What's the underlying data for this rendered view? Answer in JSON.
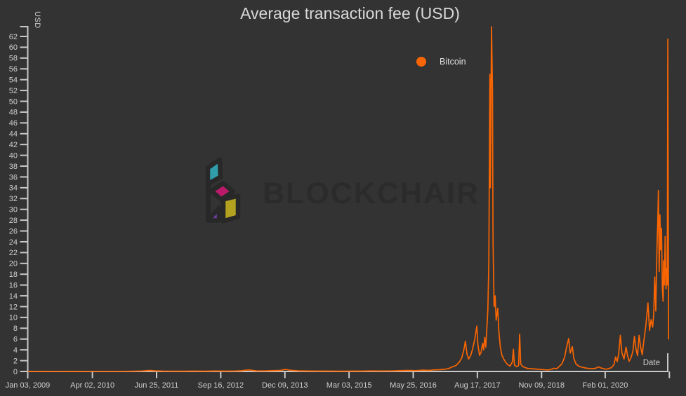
{
  "watermark": {
    "text": "BLOCKCHAIR"
  },
  "colors": {
    "background": "#333333",
    "series_orange": "#f96502",
    "axis_line": "#c9c9c9",
    "tick_label": "#cfcfcf",
    "title_text": "#d9d9d9",
    "watermark_text": "#2b2b2b",
    "logo_outline": "#282828",
    "logo_teal": "#2f9dab",
    "logo_magenta": "#bb1a6b",
    "logo_yellow": "#b2a21f",
    "logo_purple": "#6e3fa3"
  },
  "chart_data": {
    "type": "line",
    "title": "Average transaction fee (USD)",
    "xlabel": "Date",
    "ylabel": "USD",
    "legend_position": "top-center",
    "grid": false,
    "ylim": [
      0,
      64
    ],
    "y_tick_labels": [
      0,
      2,
      4,
      6,
      8,
      10,
      12,
      14,
      16,
      18,
      20,
      22,
      24,
      26,
      28,
      30,
      32,
      34,
      36,
      38,
      40,
      42,
      44,
      46,
      48,
      50,
      52,
      54,
      56,
      58,
      60,
      62
    ],
    "x_range_years": [
      2009.01,
      2021.36
    ],
    "x_ticks": [
      {
        "label": "Jan 03, 2009",
        "year": 2009.01
      },
      {
        "label": "Apr 02, 2010",
        "year": 2010.25
      },
      {
        "label": "Jun 25, 2011",
        "year": 2011.48
      },
      {
        "label": "Sep 16, 2012",
        "year": 2012.71
      },
      {
        "label": "Dec 09, 2013",
        "year": 2013.94
      },
      {
        "label": "Mar 03, 2015",
        "year": 2015.17
      },
      {
        "label": "May 25, 2016",
        "year": 2016.4
      },
      {
        "label": "Aug 17, 2017",
        "year": 2017.63
      },
      {
        "label": "Nov 09, 2018",
        "year": 2018.86
      },
      {
        "label": "Feb 01, 2020",
        "year": 2020.08
      },
      {
        "label": "",
        "year": 2021.31
      }
    ],
    "series": [
      {
        "name": "Bitcoin",
        "color": "#f96502",
        "points": [
          [
            2009.02,
            0.02
          ],
          [
            2009.3,
            0.01
          ],
          [
            2009.6,
            0.02
          ],
          [
            2009.9,
            0.01
          ],
          [
            2010.2,
            0.02
          ],
          [
            2010.5,
            0.03
          ],
          [
            2010.8,
            0.02
          ],
          [
            2011.0,
            0.04
          ],
          [
            2011.2,
            0.09
          ],
          [
            2011.35,
            0.2
          ],
          [
            2011.45,
            0.12
          ],
          [
            2011.6,
            0.06
          ],
          [
            2011.8,
            0.05
          ],
          [
            2012.0,
            0.05
          ],
          [
            2012.2,
            0.07
          ],
          [
            2012.4,
            0.05
          ],
          [
            2012.6,
            0.08
          ],
          [
            2012.8,
            0.06
          ],
          [
            2013.0,
            0.09
          ],
          [
            2013.1,
            0.13
          ],
          [
            2013.25,
            0.3
          ],
          [
            2013.3,
            0.22
          ],
          [
            2013.4,
            0.12
          ],
          [
            2013.55,
            0.1
          ],
          [
            2013.7,
            0.14
          ],
          [
            2013.85,
            0.2
          ],
          [
            2013.95,
            0.38
          ],
          [
            2014.05,
            0.22
          ],
          [
            2014.2,
            0.12
          ],
          [
            2014.4,
            0.08
          ],
          [
            2014.6,
            0.07
          ],
          [
            2014.8,
            0.06
          ],
          [
            2015.0,
            0.05
          ],
          [
            2015.2,
            0.06
          ],
          [
            2015.4,
            0.07
          ],
          [
            2015.6,
            0.1
          ],
          [
            2015.8,
            0.09
          ],
          [
            2016.0,
            0.11
          ],
          [
            2016.15,
            0.14
          ],
          [
            2016.3,
            0.19
          ],
          [
            2016.45,
            0.15
          ],
          [
            2016.6,
            0.24
          ],
          [
            2016.7,
            0.2
          ],
          [
            2016.8,
            0.3
          ],
          [
            2016.9,
            0.33
          ],
          [
            2017.0,
            0.4
          ],
          [
            2017.08,
            0.55
          ],
          [
            2017.15,
            0.85
          ],
          [
            2017.22,
            1.1
          ],
          [
            2017.28,
            1.7
          ],
          [
            2017.33,
            2.5
          ],
          [
            2017.37,
            4.0
          ],
          [
            2017.4,
            5.6
          ],
          [
            2017.43,
            3.3
          ],
          [
            2017.46,
            2.3
          ],
          [
            2017.5,
            2.9
          ],
          [
            2017.54,
            4.2
          ],
          [
            2017.58,
            6.0
          ],
          [
            2017.62,
            8.4
          ],
          [
            2017.64,
            5.0
          ],
          [
            2017.67,
            3.0
          ],
          [
            2017.7,
            3.5
          ],
          [
            2017.73,
            5.2
          ],
          [
            2017.75,
            4.0
          ],
          [
            2017.77,
            6.3
          ],
          [
            2017.79,
            4.5
          ],
          [
            2017.81,
            7.8
          ],
          [
            2017.83,
            11.5
          ],
          [
            2017.85,
            20.0
          ],
          [
            2017.87,
            55.0
          ],
          [
            2017.88,
            34.0
          ],
          [
            2017.9,
            63.8
          ],
          [
            2017.92,
            52.0
          ],
          [
            2017.93,
            24.0
          ],
          [
            2017.95,
            12.0
          ],
          [
            2017.97,
            14.0
          ],
          [
            2017.99,
            9.5
          ],
          [
            2018.02,
            11.7
          ],
          [
            2018.04,
            7.5
          ],
          [
            2018.07,
            4.5
          ],
          [
            2018.1,
            3.0
          ],
          [
            2018.14,
            2.2
          ],
          [
            2018.18,
            1.6
          ],
          [
            2018.22,
            1.2
          ],
          [
            2018.26,
            1.0
          ],
          [
            2018.3,
            1.8
          ],
          [
            2018.32,
            4.1
          ],
          [
            2018.34,
            1.2
          ],
          [
            2018.38,
            0.9
          ],
          [
            2018.42,
            1.1
          ],
          [
            2018.44,
            6.9
          ],
          [
            2018.46,
            1.4
          ],
          [
            2018.5,
            0.9
          ],
          [
            2018.55,
            0.7
          ],
          [
            2018.6,
            0.55
          ],
          [
            2018.67,
            0.5
          ],
          [
            2018.74,
            0.45
          ],
          [
            2018.8,
            0.4
          ],
          [
            2018.87,
            0.35
          ],
          [
            2018.94,
            0.3
          ],
          [
            2019.0,
            0.28
          ],
          [
            2019.05,
            0.42
          ],
          [
            2019.1,
            0.6
          ],
          [
            2019.15,
            0.5
          ],
          [
            2019.2,
            0.95
          ],
          [
            2019.25,
            1.4
          ],
          [
            2019.3,
            2.6
          ],
          [
            2019.34,
            4.5
          ],
          [
            2019.38,
            6.1
          ],
          [
            2019.41,
            3.4
          ],
          [
            2019.45,
            4.6
          ],
          [
            2019.48,
            2.4
          ],
          [
            2019.52,
            1.4
          ],
          [
            2019.57,
            1.0
          ],
          [
            2019.63,
            0.8
          ],
          [
            2019.7,
            0.65
          ],
          [
            2019.77,
            0.55
          ],
          [
            2019.84,
            0.5
          ],
          [
            2019.9,
            0.6
          ],
          [
            2019.95,
            0.85
          ],
          [
            2020.0,
            0.65
          ],
          [
            2020.05,
            0.5
          ],
          [
            2020.1,
            0.42
          ],
          [
            2020.15,
            0.55
          ],
          [
            2020.2,
            0.7
          ],
          [
            2020.25,
            1.3
          ],
          [
            2020.28,
            2.7
          ],
          [
            2020.31,
            1.8
          ],
          [
            2020.34,
            3.3
          ],
          [
            2020.37,
            6.7
          ],
          [
            2020.4,
            3.5
          ],
          [
            2020.44,
            2.3
          ],
          [
            2020.48,
            4.5
          ],
          [
            2020.51,
            2.8
          ],
          [
            2020.54,
            1.9
          ],
          [
            2020.58,
            2.7
          ],
          [
            2020.61,
            3.7
          ],
          [
            2020.64,
            6.5
          ],
          [
            2020.67,
            4.2
          ],
          [
            2020.7,
            2.9
          ],
          [
            2020.73,
            6.7
          ],
          [
            2020.76,
            4.5
          ],
          [
            2020.79,
            3.1
          ],
          [
            2020.82,
            5.6
          ],
          [
            2020.86,
            8.6
          ],
          [
            2020.9,
            12.7
          ],
          [
            2020.93,
            7.6
          ],
          [
            2020.96,
            9.6
          ],
          [
            2020.99,
            8.2
          ],
          [
            2021.01,
            10.6
          ],
          [
            2021.03,
            17.5
          ],
          [
            2021.05,
            11.2
          ],
          [
            2021.07,
            22.0
          ],
          [
            2021.09,
            28.5
          ],
          [
            2021.1,
            33.5
          ],
          [
            2021.115,
            18.5
          ],
          [
            2021.13,
            29.0
          ],
          [
            2021.145,
            22.5
          ],
          [
            2021.16,
            26.5
          ],
          [
            2021.175,
            15.5
          ],
          [
            2021.19,
            13.0
          ],
          [
            2021.2,
            20.5
          ],
          [
            2021.215,
            16.0
          ],
          [
            2021.23,
            25.0
          ],
          [
            2021.245,
            15.3
          ],
          [
            2021.26,
            19.0
          ],
          [
            2021.27,
            16.0
          ],
          [
            2021.28,
            61.5
          ],
          [
            2021.295,
            6.0
          ]
        ]
      }
    ]
  }
}
